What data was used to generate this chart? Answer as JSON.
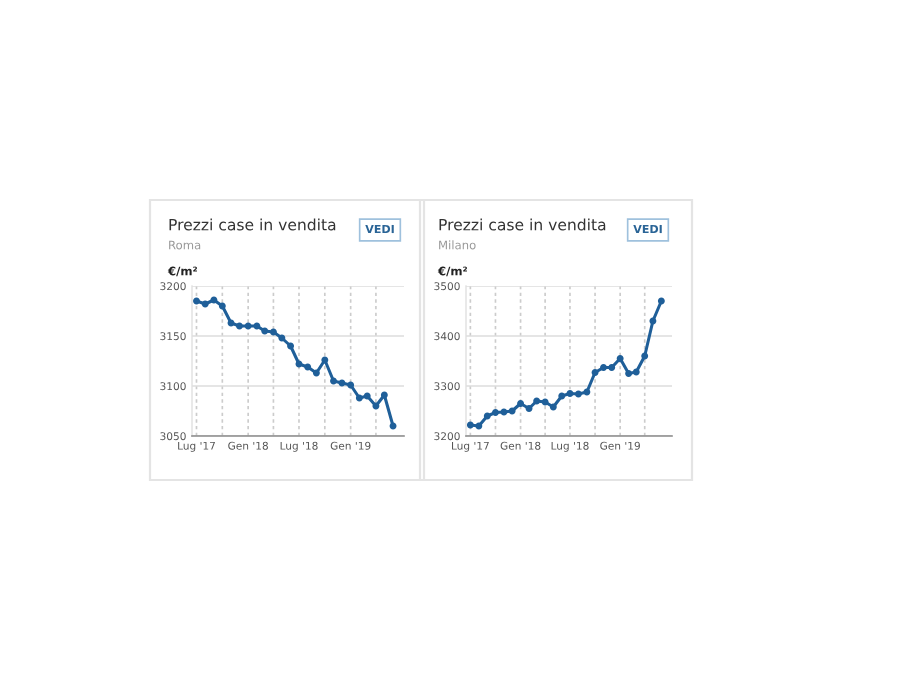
{
  "chart_data": [
    {
      "type": "line",
      "title": "Prezzi case in vendita",
      "subtitle": "Roma",
      "ylabel": "€/m²",
      "annotations": [
        "VEDI"
      ],
      "x": [
        "2017-07",
        "2017-08",
        "2017-09",
        "2017-10",
        "2017-11",
        "2017-12",
        "2018-01",
        "2018-02",
        "2018-03",
        "2018-04",
        "2018-05",
        "2018-06",
        "2018-07",
        "2018-08",
        "2018-09",
        "2018-10",
        "2018-11",
        "2018-12",
        "2019-01",
        "2019-02",
        "2019-03",
        "2019-04",
        "2019-05",
        "2019-06"
      ],
      "series": [
        {
          "color": "#1f5f99",
          "values": [
            3185,
            3182,
            3186,
            3180,
            3163,
            3160,
            3160,
            3160,
            3155,
            3154,
            3148,
            3140,
            3122,
            3119,
            3113,
            3126,
            3105,
            3103,
            3101,
            3088,
            3090,
            3080,
            3091,
            3060
          ]
        }
      ],
      "xlim": [
        "2017-06-15",
        "2019-07-10"
      ],
      "ylim": [
        3050,
        3200
      ],
      "yticks": [
        3050,
        3100,
        3150,
        3200
      ],
      "xticks": [
        {
          "value": "2017-07",
          "label": "Lug '17"
        },
        {
          "value": "2017-10",
          "label": null
        },
        {
          "value": "2018-01",
          "label": "Gen '18"
        },
        {
          "value": "2018-04",
          "label": null
        },
        {
          "value": "2018-07",
          "label": "Lug '18"
        },
        {
          "value": "2018-10",
          "label": null
        },
        {
          "value": "2019-01",
          "label": "Gen '19"
        },
        {
          "value": "2019-04",
          "label": null
        }
      ],
      "grid": true,
      "marker": "circle",
      "line_style": "solid"
    },
    {
      "type": "line",
      "title": "Prezzi case in vendita",
      "subtitle": "Milano",
      "ylabel": "€/m²",
      "annotations": [
        "VEDI"
      ],
      "x": [
        "2017-07",
        "2017-08",
        "2017-09",
        "2017-10",
        "2017-11",
        "2017-12",
        "2018-01",
        "2018-02",
        "2018-03",
        "2018-04",
        "2018-05",
        "2018-06",
        "2018-07",
        "2018-08",
        "2018-09",
        "2018-10",
        "2018-11",
        "2018-12",
        "2019-01",
        "2019-02",
        "2019-03",
        "2019-04",
        "2019-05",
        "2019-06"
      ],
      "series": [
        {
          "color": "#1f5f99",
          "values": [
            3222,
            3220,
            3240,
            3247,
            3248,
            3250,
            3265,
            3255,
            3270,
            3268,
            3258,
            3280,
            3285,
            3284,
            3288,
            3327,
            3337,
            3337,
            3355,
            3325,
            3328,
            3360,
            3430,
            3470
          ]
        }
      ],
      "xlim": [
        "2017-06-15",
        "2019-07-10"
      ],
      "ylim": [
        3200,
        3500
      ],
      "yticks": [
        3200,
        3300,
        3400,
        3500
      ],
      "xticks": [
        {
          "value": "2017-07",
          "label": "Lug '17"
        },
        {
          "value": "2017-10",
          "label": null
        },
        {
          "value": "2018-01",
          "label": "Gen '18"
        },
        {
          "value": "2018-04",
          "label": null
        },
        {
          "value": "2018-07",
          "label": "Lug '18"
        },
        {
          "value": "2018-10",
          "label": null
        },
        {
          "value": "2019-01",
          "label": "Gen '19"
        },
        {
          "value": "2019-04",
          "label": null
        }
      ],
      "grid": true,
      "marker": "circle",
      "line_style": "solid"
    }
  ]
}
